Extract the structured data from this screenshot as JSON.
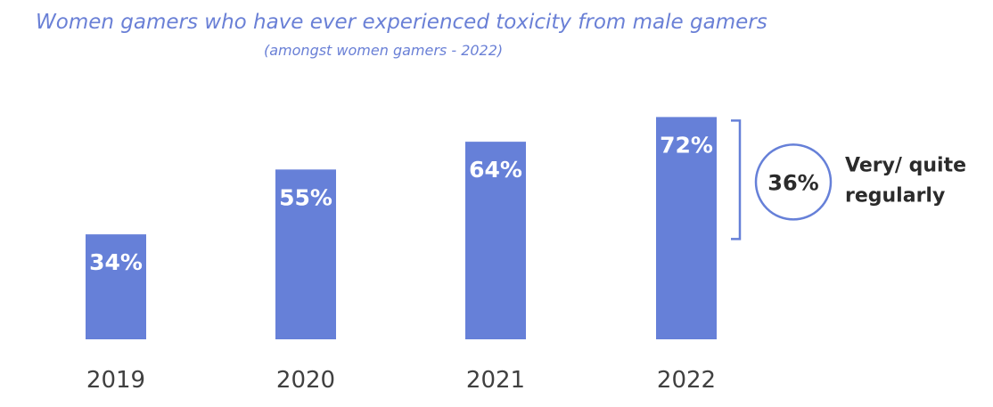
{
  "chart_data": {
    "type": "bar",
    "title": "Women gamers who have ever experienced toxicity from male gamers",
    "subtitle": "(amongst women gamers - 2022)",
    "categories": [
      "2019",
      "2020",
      "2021",
      "2022"
    ],
    "values": [
      34,
      55,
      64,
      72
    ],
    "data_labels": [
      "34%",
      "55%",
      "64%",
      "72%"
    ],
    "unit": "%",
    "ylim": [
      0,
      90
    ],
    "grid": false,
    "bar_color": "#6680d8",
    "annotation": {
      "category": "2022",
      "value_label": "36%",
      "text_line1": "Very/ quite",
      "text_line2": "regularly",
      "color": "#6680d8"
    }
  }
}
